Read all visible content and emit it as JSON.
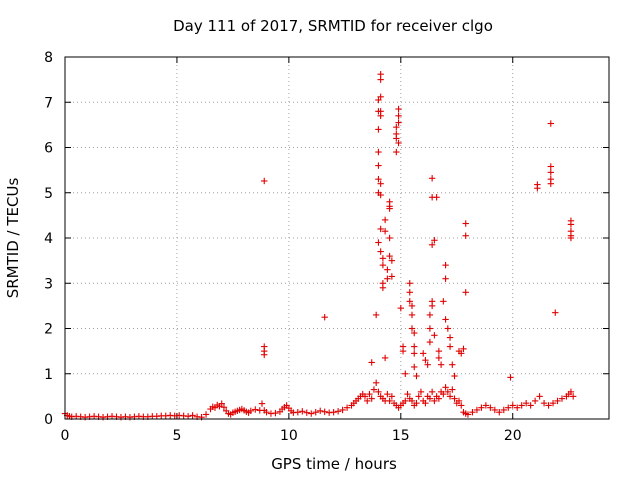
{
  "chart_data": {
    "type": "scatter",
    "title": "Day 111 of 2017, SRMTID for receiver clgo",
    "xlabel": "GPS time / hours",
    "ylabel": "SRMTID / TECUs",
    "xlim": [
      0,
      24.3
    ],
    "ylim": [
      0,
      8
    ],
    "x_ticks": [
      0,
      5,
      10,
      15,
      20
    ],
    "y_ticks": [
      0,
      1,
      2,
      3,
      4,
      5,
      6,
      7,
      8
    ],
    "grid": true,
    "marker": "+",
    "color": "#e00000",
    "series": [
      {
        "name": "SRMTID",
        "points": [
          [
            0.0,
            0.12
          ],
          [
            0.1,
            0.08
          ],
          [
            0.2,
            0.06
          ],
          [
            0.3,
            0.05
          ],
          [
            0.5,
            0.06
          ],
          [
            0.7,
            0.05
          ],
          [
            0.9,
            0.04
          ],
          [
            1.1,
            0.05
          ],
          [
            1.3,
            0.06
          ],
          [
            1.5,
            0.05
          ],
          [
            1.7,
            0.04
          ],
          [
            1.9,
            0.05
          ],
          [
            2.1,
            0.06
          ],
          [
            2.3,
            0.05
          ],
          [
            2.5,
            0.04
          ],
          [
            2.7,
            0.05
          ],
          [
            2.9,
            0.04
          ],
          [
            3.1,
            0.05
          ],
          [
            3.3,
            0.06
          ],
          [
            3.5,
            0.05
          ],
          [
            3.7,
            0.05
          ],
          [
            3.9,
            0.06
          ],
          [
            4.1,
            0.06
          ],
          [
            4.3,
            0.07
          ],
          [
            4.5,
            0.07
          ],
          [
            4.7,
            0.08
          ],
          [
            4.9,
            0.07
          ],
          [
            5.1,
            0.08
          ],
          [
            5.3,
            0.07
          ],
          [
            5.5,
            0.06
          ],
          [
            5.7,
            0.08
          ],
          [
            5.9,
            0.05
          ],
          [
            6.1,
            0.04
          ],
          [
            6.3,
            0.1
          ],
          [
            6.5,
            0.22
          ],
          [
            6.6,
            0.27
          ],
          [
            6.7,
            0.25
          ],
          [
            6.8,
            0.31
          ],
          [
            6.9,
            0.28
          ],
          [
            7.0,
            0.34
          ],
          [
            7.1,
            0.26
          ],
          [
            7.2,
            0.18
          ],
          [
            7.3,
            0.12
          ],
          [
            7.4,
            0.1
          ],
          [
            7.5,
            0.14
          ],
          [
            7.6,
            0.16
          ],
          [
            7.7,
            0.18
          ],
          [
            7.8,
            0.2
          ],
          [
            7.9,
            0.22
          ],
          [
            8.0,
            0.19
          ],
          [
            8.1,
            0.16
          ],
          [
            8.2,
            0.14
          ],
          [
            8.3,
            0.18
          ],
          [
            8.5,
            0.21
          ],
          [
            8.7,
            0.19
          ],
          [
            8.8,
            0.34
          ],
          [
            8.9,
            0.19
          ],
          [
            9.0,
            0.15
          ],
          [
            9.2,
            0.12
          ],
          [
            9.4,
            0.13
          ],
          [
            9.6,
            0.16
          ],
          [
            9.7,
            0.22
          ],
          [
            9.8,
            0.26
          ],
          [
            9.9,
            0.3
          ],
          [
            10.0,
            0.24
          ],
          [
            10.1,
            0.18
          ],
          [
            10.2,
            0.14
          ],
          [
            10.4,
            0.15
          ],
          [
            10.6,
            0.17
          ],
          [
            10.8,
            0.14
          ],
          [
            11.0,
            0.12
          ],
          [
            11.2,
            0.15
          ],
          [
            11.4,
            0.18
          ],
          [
            11.6,
            0.16
          ],
          [
            11.8,
            0.14
          ],
          [
            12.0,
            0.15
          ],
          [
            12.2,
            0.17
          ],
          [
            12.4,
            0.2
          ],
          [
            12.6,
            0.25
          ],
          [
            12.8,
            0.3
          ],
          [
            12.9,
            0.35
          ],
          [
            13.0,
            0.4
          ],
          [
            13.1,
            0.45
          ],
          [
            13.2,
            0.5
          ],
          [
            13.3,
            0.55
          ],
          [
            13.4,
            0.5
          ],
          [
            13.5,
            0.4
          ],
          [
            13.6,
            0.55
          ],
          [
            13.7,
            0.45
          ],
          [
            13.8,
            0.65
          ],
          [
            13.9,
            0.8
          ],
          [
            14.0,
            0.6
          ],
          [
            14.1,
            0.5
          ],
          [
            14.2,
            0.45
          ],
          [
            14.3,
            0.4
          ],
          [
            14.4,
            0.55
          ],
          [
            14.5,
            0.4
          ],
          [
            14.6,
            0.5
          ],
          [
            14.7,
            0.35
          ],
          [
            14.8,
            0.3
          ],
          [
            14.9,
            0.25
          ],
          [
            15.0,
            0.3
          ],
          [
            15.1,
            0.35
          ],
          [
            15.2,
            0.4
          ],
          [
            15.3,
            0.55
          ],
          [
            15.4,
            0.45
          ],
          [
            15.5,
            0.4
          ],
          [
            15.6,
            0.3
          ],
          [
            15.7,
            0.35
          ],
          [
            15.8,
            0.5
          ],
          [
            15.9,
            0.6
          ],
          [
            16.0,
            0.4
          ],
          [
            16.1,
            0.35
          ],
          [
            16.2,
            0.5
          ],
          [
            16.3,
            0.45
          ],
          [
            16.4,
            0.6
          ],
          [
            16.5,
            0.4
          ],
          [
            16.6,
            0.5
          ],
          [
            16.7,
            0.45
          ],
          [
            16.8,
            0.6
          ],
          [
            16.9,
            0.55
          ],
          [
            17.0,
            0.7
          ],
          [
            17.1,
            0.6
          ],
          [
            17.2,
            0.5
          ],
          [
            17.3,
            0.65
          ],
          [
            17.4,
            0.45
          ],
          [
            17.5,
            0.35
          ],
          [
            17.6,
            0.4
          ],
          [
            17.7,
            0.3
          ],
          [
            17.8,
            0.15
          ],
          [
            17.9,
            0.12
          ],
          [
            18.0,
            0.1
          ],
          [
            18.2,
            0.15
          ],
          [
            18.4,
            0.2
          ],
          [
            18.6,
            0.25
          ],
          [
            18.8,
            0.3
          ],
          [
            19.0,
            0.25
          ],
          [
            19.2,
            0.2
          ],
          [
            19.4,
            0.15
          ],
          [
            19.6,
            0.2
          ],
          [
            19.8,
            0.25
          ],
          [
            20.0,
            0.3
          ],
          [
            20.2,
            0.25
          ],
          [
            20.4,
            0.3
          ],
          [
            20.6,
            0.35
          ],
          [
            20.8,
            0.3
          ],
          [
            21.0,
            0.4
          ],
          [
            21.2,
            0.5
          ],
          [
            21.4,
            0.35
          ],
          [
            21.6,
            0.3
          ],
          [
            21.8,
            0.35
          ],
          [
            22.0,
            0.4
          ],
          [
            22.2,
            0.45
          ],
          [
            22.4,
            0.5
          ],
          [
            22.5,
            0.55
          ],
          [
            22.6,
            0.6
          ],
          [
            22.7,
            0.5
          ],
          [
            8.9,
            5.26
          ],
          [
            8.9,
            1.6
          ],
          [
            8.9,
            1.5
          ],
          [
            8.9,
            1.42
          ],
          [
            11.6,
            2.25
          ],
          [
            13.7,
            1.25
          ],
          [
            13.9,
            2.3
          ],
          [
            14.0,
            3.9
          ],
          [
            14.0,
            5.0
          ],
          [
            14.0,
            5.3
          ],
          [
            14.0,
            5.6
          ],
          [
            14.0,
            5.9
          ],
          [
            14.0,
            6.4
          ],
          [
            14.0,
            6.8
          ],
          [
            14.0,
            7.05
          ],
          [
            14.1,
            7.12
          ],
          [
            14.1,
            7.5
          ],
          [
            14.1,
            7.62
          ],
          [
            14.1,
            6.8
          ],
          [
            14.1,
            6.7
          ],
          [
            14.1,
            5.2
          ],
          [
            14.1,
            4.95
          ],
          [
            14.1,
            4.2
          ],
          [
            14.1,
            3.7
          ],
          [
            14.2,
            3.55
          ],
          [
            14.2,
            3.4
          ],
          [
            14.2,
            3.0
          ],
          [
            14.2,
            2.9
          ],
          [
            14.3,
            4.15
          ],
          [
            14.3,
            4.4
          ],
          [
            14.3,
            1.35
          ],
          [
            14.4,
            3.1
          ],
          [
            14.4,
            3.3
          ],
          [
            14.5,
            4.7
          ],
          [
            14.5,
            4.8
          ],
          [
            14.5,
            4.65
          ],
          [
            14.5,
            4.0
          ],
          [
            14.5,
            3.6
          ],
          [
            14.6,
            3.5
          ],
          [
            14.6,
            3.15
          ],
          [
            14.8,
            5.9
          ],
          [
            14.8,
            6.2
          ],
          [
            14.8,
            6.3
          ],
          [
            14.8,
            6.45
          ],
          [
            14.9,
            6.55
          ],
          [
            14.9,
            6.7
          ],
          [
            14.9,
            6.85
          ],
          [
            14.9,
            6.1
          ],
          [
            15.0,
            2.45
          ],
          [
            15.1,
            1.6
          ],
          [
            15.1,
            1.5
          ],
          [
            15.2,
            1.0
          ],
          [
            15.4,
            3.0
          ],
          [
            15.4,
            2.8
          ],
          [
            15.4,
            2.6
          ],
          [
            15.5,
            2.5
          ],
          [
            15.5,
            2.3
          ],
          [
            15.5,
            2.0
          ],
          [
            15.6,
            1.9
          ],
          [
            15.6,
            1.6
          ],
          [
            15.6,
            1.45
          ],
          [
            15.6,
            1.15
          ],
          [
            15.7,
            0.95
          ],
          [
            16.0,
            1.45
          ],
          [
            16.1,
            1.3
          ],
          [
            16.2,
            1.2
          ],
          [
            16.3,
            1.7
          ],
          [
            16.3,
            2.0
          ],
          [
            16.3,
            2.3
          ],
          [
            16.4,
            2.5
          ],
          [
            16.4,
            2.6
          ],
          [
            16.4,
            3.85
          ],
          [
            16.4,
            4.9
          ],
          [
            16.4,
            5.32
          ],
          [
            16.5,
            3.95
          ],
          [
            16.5,
            1.85
          ],
          [
            16.6,
            4.9
          ],
          [
            16.7,
            1.5
          ],
          [
            16.7,
            1.35
          ],
          [
            16.8,
            1.2
          ],
          [
            16.9,
            2.6
          ],
          [
            17.0,
            3.4
          ],
          [
            17.0,
            3.1
          ],
          [
            17.0,
            2.2
          ],
          [
            17.1,
            2.0
          ],
          [
            17.2,
            1.8
          ],
          [
            17.2,
            1.6
          ],
          [
            17.3,
            1.2
          ],
          [
            17.4,
            0.95
          ],
          [
            17.6,
            1.5
          ],
          [
            17.7,
            1.45
          ],
          [
            17.8,
            1.55
          ],
          [
            17.9,
            4.05
          ],
          [
            17.9,
            4.32
          ],
          [
            17.9,
            2.8
          ],
          [
            19.9,
            0.92
          ],
          [
            21.1,
            5.1
          ],
          [
            21.1,
            5.18
          ],
          [
            21.7,
            5.2
          ],
          [
            21.7,
            5.3
          ],
          [
            21.7,
            5.45
          ],
          [
            21.7,
            5.58
          ],
          [
            21.7,
            6.53
          ],
          [
            21.9,
            2.35
          ],
          [
            22.6,
            4.0
          ],
          [
            22.6,
            4.05
          ],
          [
            22.6,
            4.15
          ],
          [
            22.6,
            4.3
          ],
          [
            22.6,
            4.38
          ]
        ]
      }
    ]
  }
}
